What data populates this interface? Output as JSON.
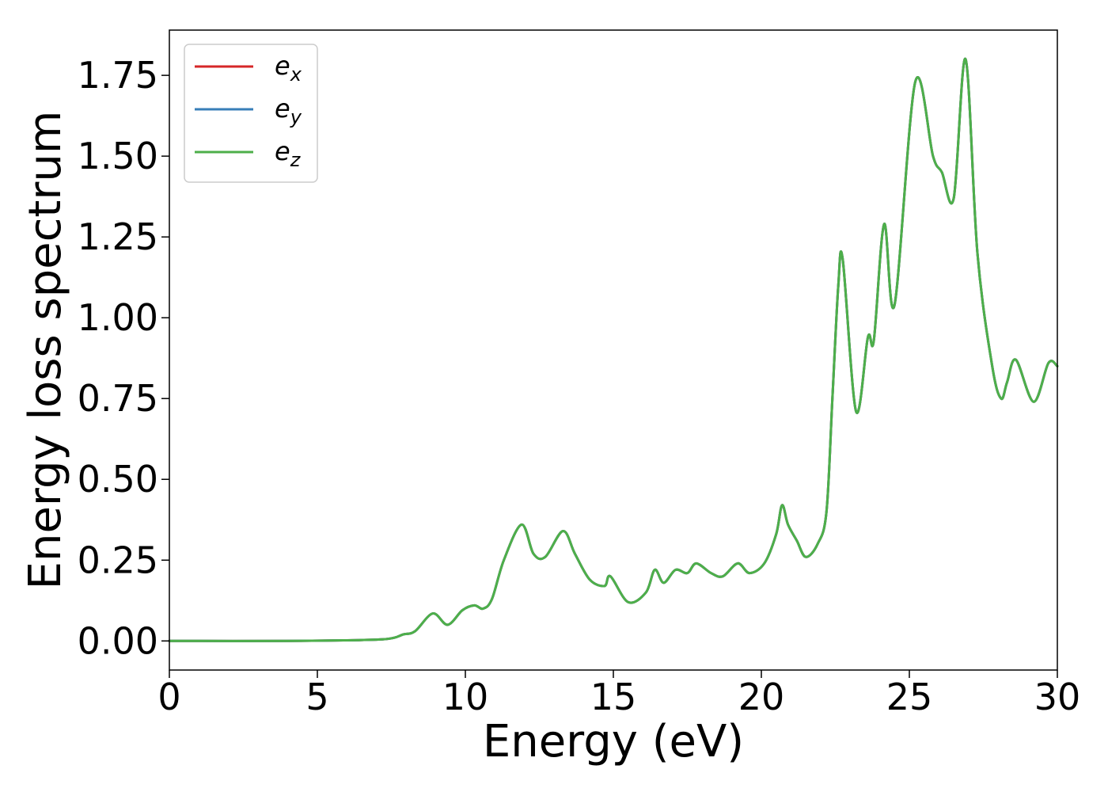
{
  "chart_data": {
    "type": "line",
    "title": "",
    "xlabel": "Energy (eV)",
    "ylabel": "Energy loss spectrum",
    "xlim": [
      0,
      30
    ],
    "ylim": [
      -0.09,
      1.89
    ],
    "xticks": [
      0,
      5,
      10,
      15,
      20,
      25,
      30
    ],
    "xtick_labels": [
      "0",
      "5",
      "10",
      "15",
      "20",
      "25",
      "30"
    ],
    "yticks": [
      0.0,
      0.25,
      0.5,
      0.75,
      1.0,
      1.25,
      1.5,
      1.75
    ],
    "ytick_labels": [
      "0.00",
      "0.25",
      "0.50",
      "0.75",
      "1.00",
      "1.25",
      "1.50",
      "1.75"
    ],
    "grid": false,
    "legend_position": "top-left",
    "series": [
      {
        "name": "e_x",
        "label_base": "e",
        "label_sub": "x",
        "color": "#d62728",
        "x": [
          0,
          4,
          6,
          7.2,
          7.6,
          7.9,
          8.3,
          8.9,
          9.4,
          9.9,
          10.3,
          10.6,
          10.9,
          11.3,
          11.9,
          12.3,
          12.7,
          13.3,
          13.7,
          14.2,
          14.7,
          14.9,
          15.5,
          16.1,
          16.4,
          16.7,
          17.1,
          17.5,
          17.8,
          18.3,
          18.7,
          19.2,
          19.6,
          20.1,
          20.5,
          20.7,
          20.9,
          21.2,
          21.5,
          21.9,
          22.2,
          22.4,
          22.6,
          22.75,
          23.2,
          23.6,
          23.8,
          24.15,
          24.5,
          25.2,
          25.8,
          26.1,
          26.5,
          26.9,
          27.3,
          27.8,
          28.1,
          28.3,
          28.6,
          29.2,
          29.7,
          30
        ],
        "values": [
          0.0,
          0.0,
          0.002,
          0.005,
          0.01,
          0.02,
          0.03,
          0.085,
          0.05,
          0.095,
          0.11,
          0.1,
          0.13,
          0.25,
          0.36,
          0.27,
          0.26,
          0.34,
          0.27,
          0.19,
          0.17,
          0.2,
          0.12,
          0.15,
          0.22,
          0.18,
          0.22,
          0.21,
          0.24,
          0.21,
          0.2,
          0.24,
          0.21,
          0.24,
          0.33,
          0.42,
          0.36,
          0.31,
          0.26,
          0.3,
          0.4,
          0.75,
          1.1,
          1.18,
          0.71,
          0.94,
          0.93,
          1.29,
          1.04,
          1.73,
          1.5,
          1.45,
          1.37,
          1.8,
          1.2,
          0.85,
          0.75,
          0.8,
          0.87,
          0.74,
          0.86,
          0.85
        ]
      },
      {
        "name": "e_y",
        "label_base": "e",
        "label_sub": "y",
        "color": "#377eb8",
        "x": [
          0,
          4,
          6,
          7.2,
          7.6,
          7.9,
          8.3,
          8.9,
          9.4,
          9.9,
          10.3,
          10.6,
          10.9,
          11.3,
          11.9,
          12.3,
          12.7,
          13.3,
          13.7,
          14.2,
          14.7,
          14.9,
          15.5,
          16.1,
          16.4,
          16.7,
          17.1,
          17.5,
          17.8,
          18.3,
          18.7,
          19.2,
          19.6,
          20.1,
          20.5,
          20.7,
          20.9,
          21.2,
          21.5,
          21.9,
          22.2,
          22.4,
          22.6,
          22.75,
          23.2,
          23.6,
          23.8,
          24.15,
          24.5,
          25.2,
          25.8,
          26.1,
          26.5,
          26.9,
          27.3,
          27.8,
          28.1,
          28.3,
          28.6,
          29.2,
          29.7,
          30
        ],
        "values": [
          0.0,
          0.0,
          0.002,
          0.005,
          0.01,
          0.02,
          0.03,
          0.085,
          0.05,
          0.095,
          0.11,
          0.1,
          0.13,
          0.25,
          0.36,
          0.27,
          0.26,
          0.34,
          0.27,
          0.19,
          0.17,
          0.2,
          0.12,
          0.15,
          0.22,
          0.18,
          0.22,
          0.21,
          0.24,
          0.21,
          0.2,
          0.24,
          0.21,
          0.24,
          0.33,
          0.42,
          0.36,
          0.31,
          0.26,
          0.3,
          0.4,
          0.75,
          1.1,
          1.18,
          0.71,
          0.94,
          0.93,
          1.29,
          1.04,
          1.73,
          1.5,
          1.45,
          1.37,
          1.8,
          1.2,
          0.85,
          0.75,
          0.8,
          0.87,
          0.74,
          0.86,
          0.85
        ]
      },
      {
        "name": "e_z",
        "label_base": "e",
        "label_sub": "z",
        "color": "#4daf4a",
        "x": [
          0,
          4,
          6,
          7.2,
          7.6,
          7.9,
          8.3,
          8.9,
          9.4,
          9.9,
          10.3,
          10.6,
          10.9,
          11.3,
          11.9,
          12.3,
          12.7,
          13.3,
          13.7,
          14.2,
          14.7,
          14.9,
          15.5,
          16.1,
          16.4,
          16.7,
          17.1,
          17.5,
          17.8,
          18.3,
          18.7,
          19.2,
          19.6,
          20.1,
          20.5,
          20.7,
          20.9,
          21.2,
          21.5,
          21.9,
          22.2,
          22.4,
          22.6,
          22.75,
          23.2,
          23.6,
          23.8,
          24.15,
          24.5,
          25.2,
          25.8,
          26.1,
          26.5,
          26.9,
          27.3,
          27.8,
          28.1,
          28.3,
          28.6,
          29.2,
          29.7,
          30
        ],
        "values": [
          0.0,
          0.0,
          0.002,
          0.005,
          0.01,
          0.02,
          0.03,
          0.085,
          0.05,
          0.095,
          0.11,
          0.1,
          0.13,
          0.25,
          0.36,
          0.27,
          0.26,
          0.34,
          0.27,
          0.19,
          0.17,
          0.2,
          0.12,
          0.15,
          0.22,
          0.18,
          0.22,
          0.21,
          0.24,
          0.21,
          0.2,
          0.24,
          0.21,
          0.24,
          0.33,
          0.42,
          0.36,
          0.31,
          0.26,
          0.3,
          0.4,
          0.75,
          1.1,
          1.18,
          0.71,
          0.94,
          0.93,
          1.29,
          1.04,
          1.73,
          1.5,
          1.45,
          1.37,
          1.8,
          1.2,
          0.85,
          0.75,
          0.8,
          0.87,
          0.74,
          0.86,
          0.85
        ]
      }
    ]
  }
}
